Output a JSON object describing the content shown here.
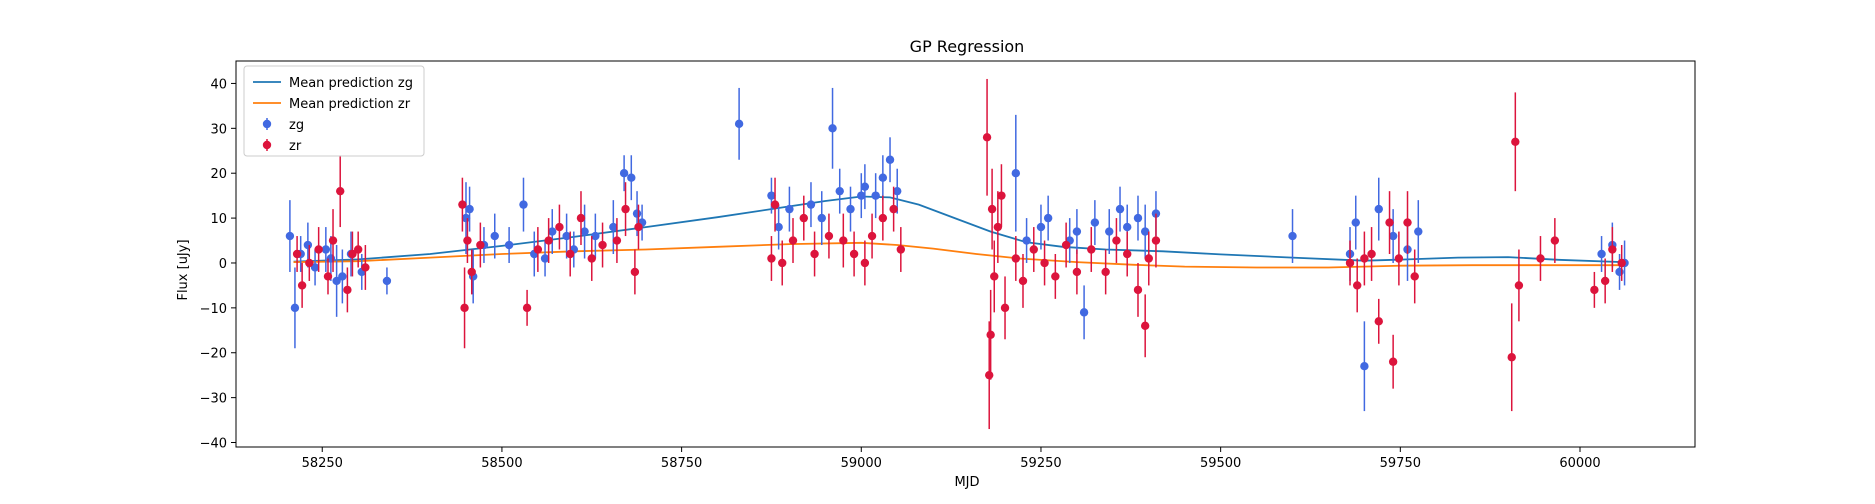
{
  "chart_data": {
    "type": "scatter",
    "title": "GP Regression",
    "xlabel": "MJD",
    "ylabel": "Flux [uJy]",
    "xlim": [
      58130,
      60160
    ],
    "ylim": [
      -41,
      45
    ],
    "xticks": [
      58250,
      58500,
      58750,
      59000,
      59250,
      59500,
      59750,
      60000
    ],
    "yticks": [
      -40,
      -30,
      -20,
      -10,
      0,
      10,
      20,
      30,
      40
    ],
    "grid": false,
    "legend_position": "top-left",
    "legend": [
      {
        "label": "Mean prediction zg",
        "kind": "line",
        "color": "#1f77b4"
      },
      {
        "label": "Mean prediction zr",
        "kind": "line",
        "color": "#ff7f0e"
      },
      {
        "label": "zg",
        "kind": "errorbar",
        "color": "#4169e1"
      },
      {
        "label": "zr",
        "kind": "errorbar",
        "color": "#dc143c"
      }
    ],
    "lines": [
      {
        "name": "Mean prediction zg",
        "color": "#1f77b4",
        "x": [
          58210,
          58300,
          58400,
          58500,
          58600,
          58700,
          58800,
          58900,
          58950,
          59000,
          59040,
          59080,
          59130,
          59180,
          59230,
          59280,
          59340,
          59420,
          59500,
          59600,
          59700,
          59760,
          59830,
          59900,
          59970,
          60060
        ],
        "y": [
          0.3,
          0.8,
          2.0,
          3.8,
          5.8,
          8.0,
          10.2,
          12.6,
          13.8,
          14.8,
          14.6,
          13.0,
          10.0,
          7.0,
          4.6,
          3.6,
          3.0,
          2.6,
          1.9,
          1.2,
          0.5,
          0.8,
          1.2,
          1.3,
          0.7,
          0.2
        ]
      },
      {
        "name": "Mean prediction zr",
        "color": "#ff7f0e",
        "x": [
          58210,
          58300,
          58400,
          58500,
          58600,
          58700,
          58800,
          58900,
          59000,
          59050,
          59100,
          59160,
          59220,
          59300,
          59380,
          59450,
          59550,
          59650,
          59750,
          59850,
          59950,
          60060
        ],
        "y": [
          0.2,
          0.4,
          1.2,
          2.0,
          2.6,
          3.0,
          3.6,
          4.2,
          4.5,
          4.0,
          3.2,
          2.0,
          1.0,
          0.2,
          -0.4,
          -0.8,
          -1.0,
          -1.0,
          -0.6,
          -0.5,
          -0.5,
          -0.5
        ]
      }
    ],
    "series": [
      {
        "name": "zg",
        "color": "#4169e1",
        "x": [
          58205,
          58212,
          58220,
          58230,
          58240,
          58255,
          58262,
          58270,
          58278,
          58290,
          58305,
          58340,
          58450,
          58455,
          58460,
          58475,
          58490,
          58510,
          58530,
          58545,
          58560,
          58570,
          58590,
          58600,
          58615,
          58630,
          58655,
          58670,
          58680,
          58688,
          58695,
          58830,
          58875,
          58885,
          58900,
          58930,
          58945,
          58960,
          58970,
          58985,
          59000,
          59005,
          59020,
          59030,
          59040,
          59050,
          59215,
          59230,
          59250,
          59260,
          59290,
          59300,
          59310,
          59325,
          59345,
          59360,
          59370,
          59385,
          59395,
          59410,
          59600,
          59680,
          59688,
          59700,
          59720,
          59740,
          59760,
          59775,
          60030,
          60045,
          60055,
          60062
        ],
        "y": [
          6,
          -10,
          2,
          4,
          -1,
          3,
          1,
          -4,
          -3,
          2,
          -2,
          -4,
          10,
          12,
          -3,
          4,
          6,
          4,
          13,
          2,
          1,
          7,
          6,
          3,
          7,
          6,
          8,
          20,
          19,
          11,
          9,
          31,
          15,
          8,
          12,
          13,
          10,
          30,
          16,
          12,
          15,
          17,
          15,
          19,
          23,
          16,
          20,
          5,
          8,
          10,
          5,
          7,
          -11,
          9,
          7,
          12,
          8,
          10,
          7,
          11,
          6,
          2,
          9,
          -23,
          12,
          6,
          3,
          7,
          2,
          4,
          -2,
          0
        ],
        "err": [
          8,
          9,
          4,
          5,
          4,
          5,
          5,
          8,
          6,
          5,
          4,
          3,
          8,
          5,
          6,
          4,
          5,
          4,
          6,
          5,
          4,
          5,
          5,
          4,
          6,
          5,
          6,
          4,
          5,
          5,
          4,
          8,
          4,
          5,
          5,
          5,
          6,
          9,
          5,
          5,
          5,
          5,
          5,
          5,
          5,
          5,
          13,
          5,
          5,
          5,
          5,
          5,
          6,
          5,
          5,
          5,
          5,
          5,
          6,
          5,
          6,
          6,
          6,
          10,
          7,
          6,
          7,
          7,
          4,
          5,
          4,
          5
        ]
      },
      {
        "name": "zr",
        "color": "#dc143c",
        "x": [
          58215,
          58222,
          58232,
          58245,
          58258,
          58265,
          58275,
          58285,
          58292,
          58300,
          58310,
          58445,
          58448,
          58452,
          58458,
          58470,
          58535,
          58550,
          58565,
          58580,
          58595,
          58610,
          58625,
          58640,
          58660,
          58672,
          58685,
          58690,
          58875,
          58880,
          58890,
          58905,
          58920,
          58935,
          58955,
          58975,
          58990,
          59005,
          59015,
          59030,
          59045,
          59055,
          59175,
          59178,
          59180,
          59182,
          59185,
          59190,
          59195,
          59200,
          59215,
          59225,
          59240,
          59255,
          59270,
          59285,
          59300,
          59320,
          59340,
          59355,
          59370,
          59385,
          59395,
          59400,
          59410,
          59680,
          59690,
          59700,
          59710,
          59720,
          59735,
          59740,
          59748,
          59760,
          59770,
          59905,
          59910,
          59915,
          59945,
          59965,
          60020,
          60035,
          60045,
          60058
        ],
        "y": [
          2,
          -5,
          0,
          3,
          -3,
          5,
          16,
          -6,
          2,
          3,
          -1,
          13,
          -10,
          5,
          -2,
          4,
          -10,
          3,
          5,
          8,
          2,
          10,
          1,
          4,
          5,
          12,
          -2,
          8,
          1,
          13,
          0,
          5,
          10,
          2,
          6,
          5,
          2,
          0,
          6,
          10,
          12,
          3,
          28,
          -25,
          -16,
          12,
          -3,
          8,
          15,
          -10,
          1,
          -4,
          3,
          0,
          -3,
          4,
          -2,
          3,
          -2,
          5,
          2,
          -6,
          -14,
          1,
          5,
          0,
          -5,
          1,
          2,
          -13,
          9,
          -22,
          1,
          9,
          -3,
          -21,
          27,
          -5,
          1,
          5,
          -6,
          -4,
          3,
          0
        ],
        "err": [
          4,
          5,
          4,
          5,
          4,
          7,
          8,
          5,
          5,
          4,
          5,
          6,
          9,
          5,
          5,
          5,
          4,
          5,
          5,
          5,
          5,
          6,
          5,
          5,
          5,
          6,
          5,
          5,
          5,
          6,
          5,
          5,
          5,
          5,
          5,
          6,
          5,
          5,
          5,
          5,
          5,
          5,
          13,
          12,
          10,
          9,
          8,
          8,
          7,
          7,
          5,
          6,
          5,
          5,
          5,
          5,
          5,
          5,
          5,
          5,
          5,
          6,
          7,
          6,
          6,
          5,
          6,
          6,
          6,
          5,
          7,
          6,
          6,
          7,
          6,
          12,
          11,
          8,
          5,
          5,
          4,
          5,
          5,
          4
        ]
      }
    ]
  }
}
